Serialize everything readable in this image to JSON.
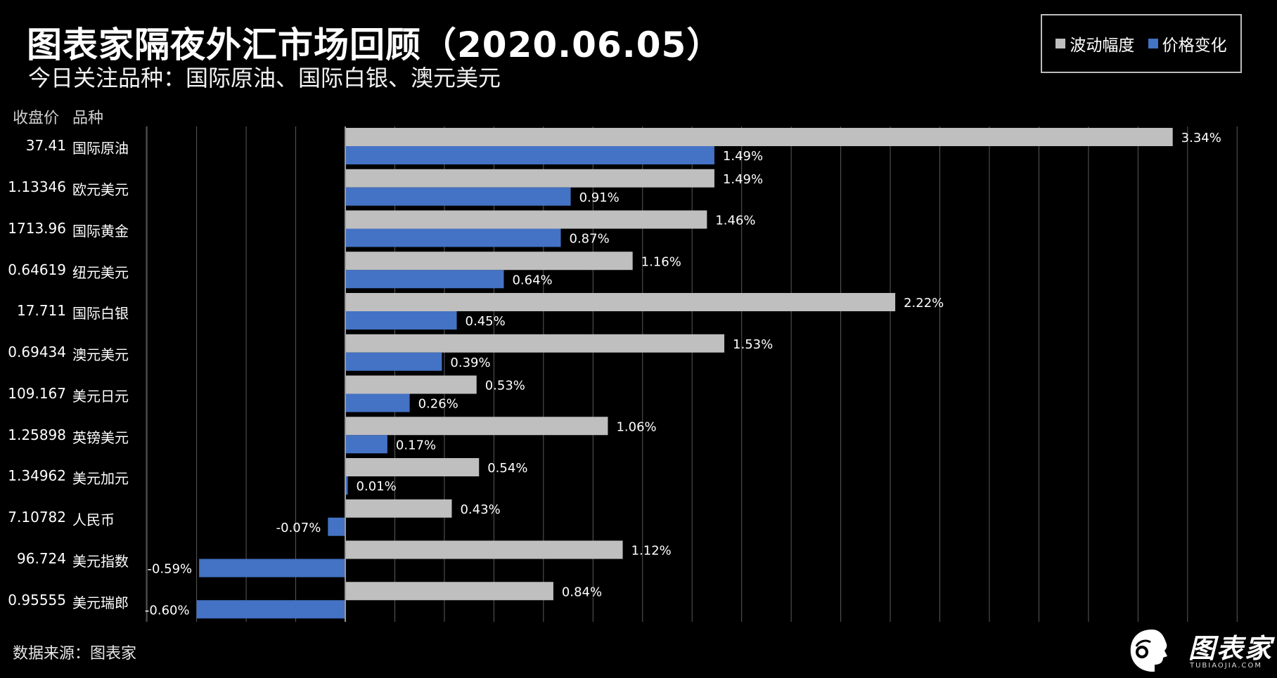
{
  "header": {
    "title": "图表家隔夜外汇市场回顾（2020.06.05）",
    "subtitle": "今日关注品种：国际原油、国际白银、澳元美元"
  },
  "legend": {
    "items": [
      {
        "label": "波动幅度",
        "color": "#bfbfbf"
      },
      {
        "label": "价格变化",
        "color": "#4472c4"
      }
    ]
  },
  "table": {
    "price_header": "收盘价",
    "name_header": "品种",
    "rows": [
      {
        "price": "37.41",
        "name": "国际原油"
      },
      {
        "price": "1.13346",
        "name": "欧元美元"
      },
      {
        "price": "1713.96",
        "name": "国际黄金"
      },
      {
        "price": "0.64619",
        "name": "纽元美元"
      },
      {
        "price": "17.711",
        "name": "国际白银"
      },
      {
        "price": "0.69434",
        "name": "澳元美元"
      },
      {
        "price": "109.167",
        "name": "美元日元"
      },
      {
        "price": "1.25898",
        "name": "英镑美元"
      },
      {
        "price": "1.34962",
        "name": "美元加元"
      },
      {
        "price": "7.10782",
        "name": "人民币"
      },
      {
        "price": "96.724",
        "name": "美元指数"
      },
      {
        "price": "0.95555",
        "name": "美元瑞郎"
      }
    ]
  },
  "chart_data": {
    "type": "bar",
    "orientation": "horizontal",
    "categories": [
      "国际原油",
      "欧元美元",
      "国际黄金",
      "纽元美元",
      "国际白银",
      "澳元美元",
      "美元日元",
      "英镑美元",
      "美元加元",
      "人民币",
      "美元指数",
      "美元瑞郎"
    ],
    "series": [
      {
        "name": "波动幅度",
        "color": "#bfbfbf",
        "values": [
          3.34,
          1.49,
          1.46,
          1.16,
          2.22,
          1.53,
          0.53,
          1.06,
          0.54,
          0.43,
          1.12,
          0.84
        ]
      },
      {
        "name": "价格变化",
        "color": "#4472c4",
        "values": [
          1.49,
          0.91,
          0.87,
          0.64,
          0.45,
          0.39,
          0.26,
          0.17,
          0.01,
          -0.07,
          -0.59,
          -0.6
        ]
      }
    ],
    "value_labels": [
      [
        "3.34%",
        "1.49%",
        "1.46%",
        "1.16%",
        "2.22%",
        "1.53%",
        "0.53%",
        "1.06%",
        "0.54%",
        "0.43%",
        "1.12%",
        "0.84%"
      ],
      [
        "1.49%",
        "0.91%",
        "0.87%",
        "0.64%",
        "0.45%",
        "0.39%",
        "0.26%",
        "0.17%",
        "0.01%",
        "-0.07%",
        "-0.59%",
        "-0.60%"
      ]
    ],
    "xlim": [
      -0.8,
      3.6
    ],
    "grid": true,
    "legend_position": "top-right"
  },
  "footer": {
    "source": "数据来源：图表家"
  },
  "logo": {
    "text": "图表家",
    "sub": "TUBIAOJIA.COM"
  }
}
